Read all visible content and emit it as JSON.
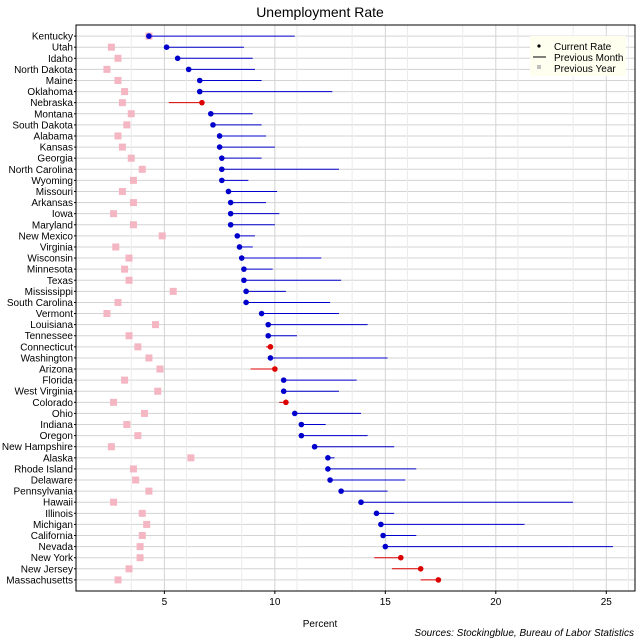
{
  "chart_data": {
    "type": "scatter",
    "title": "Unemployment Rate",
    "xlabel": "Percent",
    "ylabel": "",
    "xlim": [
      1,
      26.3
    ],
    "xticks": [
      5,
      10,
      15,
      20,
      25
    ],
    "grid": true,
    "legend_position": "top-right",
    "legend": [
      "Current Rate",
      "Previous Month",
      "Previous Year"
    ],
    "source": "Sources: Stockingblue, Bureau of Labor Statistics",
    "colors": {
      "increase": "#dd0000",
      "decrease": "#0000cc",
      "previous_year": "#f4b6c2",
      "legend_bg": "#fffff0",
      "grid": "#d3d3d3"
    },
    "states": [
      {
        "name": "Kentucky",
        "current": 4.3,
        "previous_month": 10.9,
        "previous_year": 4.3
      },
      {
        "name": "Utah",
        "current": 5.1,
        "previous_month": 8.6,
        "previous_year": 2.6
      },
      {
        "name": "Idaho",
        "current": 5.6,
        "previous_month": 9.0,
        "previous_year": 2.9
      },
      {
        "name": "North Dakota",
        "current": 6.1,
        "previous_month": 9.1,
        "previous_year": 2.4
      },
      {
        "name": "Maine",
        "current": 6.6,
        "previous_month": 9.4,
        "previous_year": 2.9
      },
      {
        "name": "Oklahoma",
        "current": 6.6,
        "previous_month": 12.6,
        "previous_year": 3.2
      },
      {
        "name": "Nebraska",
        "current": 6.7,
        "previous_month": 5.2,
        "previous_year": 3.1
      },
      {
        "name": "Montana",
        "current": 7.1,
        "previous_month": 9.0,
        "previous_year": 3.5
      },
      {
        "name": "South Dakota",
        "current": 7.2,
        "previous_month": 9.4,
        "previous_year": 3.3
      },
      {
        "name": "Alabama",
        "current": 7.5,
        "previous_month": 9.6,
        "previous_year": 2.9
      },
      {
        "name": "Kansas",
        "current": 7.5,
        "previous_month": 10.0,
        "previous_year": 3.1
      },
      {
        "name": "Georgia",
        "current": 7.6,
        "previous_month": 9.4,
        "previous_year": 3.5
      },
      {
        "name": "North Carolina",
        "current": 7.6,
        "previous_month": 12.9,
        "previous_year": 4.0
      },
      {
        "name": "Wyoming",
        "current": 7.6,
        "previous_month": 8.8,
        "previous_year": 3.6
      },
      {
        "name": "Missouri",
        "current": 7.9,
        "previous_month": 10.1,
        "previous_year": 3.1
      },
      {
        "name": "Arkansas",
        "current": 8.0,
        "previous_month": 9.6,
        "previous_year": 3.6
      },
      {
        "name": "Iowa",
        "current": 8.0,
        "previous_month": 10.2,
        "previous_year": 2.7
      },
      {
        "name": "Maryland",
        "current": 8.0,
        "previous_month": 10.0,
        "previous_year": 3.6
      },
      {
        "name": "New Mexico",
        "current": 8.3,
        "previous_month": 9.1,
        "previous_year": 4.9
      },
      {
        "name": "Virginia",
        "current": 8.4,
        "previous_month": 9.0,
        "previous_year": 2.8
      },
      {
        "name": "Wisconsin",
        "current": 8.5,
        "previous_month": 12.1,
        "previous_year": 3.4
      },
      {
        "name": "Minnesota",
        "current": 8.6,
        "previous_month": 9.9,
        "previous_year": 3.2
      },
      {
        "name": "Texas",
        "current": 8.6,
        "previous_month": 13.0,
        "previous_year": 3.4
      },
      {
        "name": "Mississippi",
        "current": 8.7,
        "previous_month": 10.5,
        "previous_year": 5.4
      },
      {
        "name": "South Carolina",
        "current": 8.7,
        "previous_month": 12.5,
        "previous_year": 2.9
      },
      {
        "name": "Vermont",
        "current": 9.4,
        "previous_month": 12.9,
        "previous_year": 2.4
      },
      {
        "name": "Louisiana",
        "current": 9.7,
        "previous_month": 14.2,
        "previous_year": 4.6
      },
      {
        "name": "Tennessee",
        "current": 9.7,
        "previous_month": 11.0,
        "previous_year": 3.4
      },
      {
        "name": "Connecticut",
        "current": 9.8,
        "previous_month": 9.6,
        "previous_year": 3.8
      },
      {
        "name": "Washington",
        "current": 9.8,
        "previous_month": 15.1,
        "previous_year": 4.3
      },
      {
        "name": "Arizona",
        "current": 10.0,
        "previous_month": 8.9,
        "previous_year": 4.8
      },
      {
        "name": "Florida",
        "current": 10.4,
        "previous_month": 13.7,
        "previous_year": 3.2
      },
      {
        "name": "West Virginia",
        "current": 10.4,
        "previous_month": 12.9,
        "previous_year": 4.7
      },
      {
        "name": "Colorado",
        "current": 10.5,
        "previous_month": 10.2,
        "previous_year": 2.7
      },
      {
        "name": "Ohio",
        "current": 10.9,
        "previous_month": 13.9,
        "previous_year": 4.1
      },
      {
        "name": "Indiana",
        "current": 11.2,
        "previous_month": 12.3,
        "previous_year": 3.3
      },
      {
        "name": "Oregon",
        "current": 11.2,
        "previous_month": 14.2,
        "previous_year": 3.8
      },
      {
        "name": "New Hampshire",
        "current": 11.8,
        "previous_month": 15.4,
        "previous_year": 2.6
      },
      {
        "name": "Alaska",
        "current": 12.4,
        "previous_month": 12.7,
        "previous_year": 6.2
      },
      {
        "name": "Rhode Island",
        "current": 12.4,
        "previous_month": 16.4,
        "previous_year": 3.6
      },
      {
        "name": "Delaware",
        "current": 12.5,
        "previous_month": 15.9,
        "previous_year": 3.7
      },
      {
        "name": "Pennsylvania",
        "current": 13.0,
        "previous_month": 15.1,
        "previous_year": 4.3
      },
      {
        "name": "Hawaii",
        "current": 13.9,
        "previous_month": 23.5,
        "previous_year": 2.7
      },
      {
        "name": "Illinois",
        "current": 14.6,
        "previous_month": 15.4,
        "previous_year": 4.0
      },
      {
        "name": "Michigan",
        "current": 14.8,
        "previous_month": 21.3,
        "previous_year": 4.2
      },
      {
        "name": "California",
        "current": 14.9,
        "previous_month": 16.4,
        "previous_year": 4.0
      },
      {
        "name": "Nevada",
        "current": 15.0,
        "previous_month": 25.3,
        "previous_year": 3.9
      },
      {
        "name": "New York",
        "current": 15.7,
        "previous_month": 14.5,
        "previous_year": 3.9
      },
      {
        "name": "New Jersey",
        "current": 16.6,
        "previous_month": 15.3,
        "previous_year": 3.4
      },
      {
        "name": "Massachusetts",
        "current": 17.4,
        "previous_month": 16.6,
        "previous_year": 2.9
      }
    ]
  }
}
